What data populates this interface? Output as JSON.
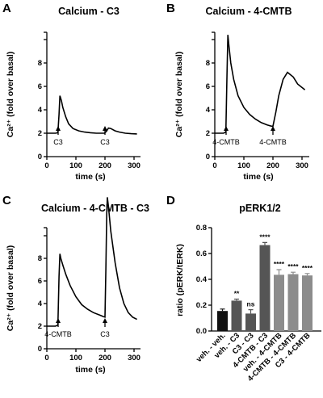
{
  "chart_data": [
    {
      "panel": "A",
      "type": "line",
      "title": "Calcium - C3",
      "xlabel": "time (s)",
      "ylabel": "Ca²⁺ (fold over basal)",
      "xlim": [
        0,
        320
      ],
      "ylim": [
        0,
        8
      ],
      "xticks": [
        "0",
        "100",
        "200",
        "300"
      ],
      "yticks": [
        "0",
        "2",
        "4",
        "6",
        "8"
      ],
      "annotations": [
        {
          "label": "C3",
          "x": 40
        },
        {
          "label": "C3",
          "x": 200
        }
      ],
      "series": [
        {
          "x": [
            0,
            10,
            20,
            30,
            38,
            42,
            45,
            50,
            55,
            65,
            75,
            90,
            110,
            130,
            150,
            170,
            190,
            198,
            205,
            212,
            220,
            235,
            250,
            270,
            290,
            310
          ],
          "y": [
            1.0,
            1.0,
            1.0,
            1.0,
            1.02,
            1.8,
            2.6,
            2.4,
            2.1,
            1.7,
            1.4,
            1.2,
            1.1,
            1.05,
            1.02,
            1.0,
            1.0,
            1.0,
            1.08,
            1.22,
            1.2,
            1.1,
            1.05,
            1.0,
            0.98,
            0.97
          ]
        }
      ]
    },
    {
      "panel": "B",
      "type": "line",
      "title": "Calcium - 4-CMTB",
      "xlabel": "time (s)",
      "ylabel": "Ca²⁺ (fold over basal)",
      "xlim": [
        0,
        320
      ],
      "ylim": [
        0,
        8
      ],
      "xticks": [
        "0",
        "100",
        "200",
        "300"
      ],
      "yticks": [
        "0",
        "2",
        "4",
        "6",
        "8"
      ],
      "annotations": [
        {
          "label": "4-CMTB",
          "x": 40
        },
        {
          "label": "4-CMTB",
          "x": 200
        }
      ],
      "series": [
        {
          "x": [
            0,
            10,
            20,
            30,
            38,
            42,
            45,
            48,
            55,
            65,
            80,
            100,
            120,
            140,
            160,
            180,
            195,
            200,
            210,
            220,
            235,
            250,
            270,
            285,
            300,
            310
          ],
          "y": [
            1.0,
            1.0,
            1.0,
            1.0,
            1.05,
            3.5,
            5.2,
            4.8,
            4.0,
            3.3,
            2.6,
            2.1,
            1.8,
            1.6,
            1.45,
            1.35,
            1.3,
            1.3,
            1.9,
            2.6,
            3.3,
            3.6,
            3.4,
            3.1,
            2.95,
            2.85
          ]
        }
      ]
    },
    {
      "panel": "C",
      "type": "line",
      "title": "Calcium - 4-CMTB - C3",
      "xlabel": "time (s)",
      "ylabel": "Ca²⁺ (fold over basal)",
      "xlim": [
        0,
        320
      ],
      "ylim": [
        0,
        8
      ],
      "xticks": [
        "0",
        "100",
        "200",
        "300"
      ],
      "yticks": [
        "0",
        "2",
        "4",
        "6",
        "8"
      ],
      "annotations": [
        {
          "label": "4-CMTB",
          "x": 40
        },
        {
          "label": "C3",
          "x": 200
        }
      ],
      "series": [
        {
          "x": [
            0,
            10,
            20,
            30,
            38,
            42,
            45,
            48,
            55,
            65,
            80,
            100,
            120,
            140,
            160,
            180,
            195,
            200,
            203,
            206,
            208,
            212,
            220,
            235,
            250,
            265,
            280,
            295,
            310
          ],
          "y": [
            1.0,
            1.0,
            1.0,
            1.0,
            1.05,
            3.2,
            4.2,
            4.0,
            3.7,
            3.3,
            2.8,
            2.3,
            1.95,
            1.75,
            1.6,
            1.5,
            1.42,
            1.4,
            3.5,
            6.0,
            6.7,
            6.3,
            5.2,
            3.8,
            2.7,
            2.0,
            1.6,
            1.4,
            1.3
          ]
        }
      ]
    },
    {
      "panel": "D",
      "type": "bar",
      "title": "pERK1/2",
      "ylabel": "ratio  (pERK/tERK)",
      "ylim": [
        0,
        0.8
      ],
      "yticks": [
        "0.0",
        "0.2",
        "0.4",
        "0.6",
        "0.8"
      ],
      "categories": [
        "veh. - veh.",
        "veh. - C3",
        "C3 - C3",
        "4-CMTB - C3",
        "veh. - 4-CMTB",
        "4-CMTB - 4-CMTB",
        "C3 - 4-CMTB"
      ],
      "values": [
        0.155,
        0.235,
        0.135,
        0.665,
        0.435,
        0.44,
        0.43
      ],
      "errors": [
        0.015,
        0.012,
        0.03,
        0.02,
        0.04,
        0.015,
        0.015
      ],
      "significance": [
        "",
        "**",
        "ns",
        "****",
        "****",
        "****",
        "****"
      ],
      "colors": [
        "#111111",
        "#555555",
        "#555555",
        "#555555",
        "#8c8c8c",
        "#8c8c8c",
        "#8c8c8c"
      ]
    }
  ],
  "panel_letters": [
    "A",
    "B",
    "C",
    "D"
  ]
}
